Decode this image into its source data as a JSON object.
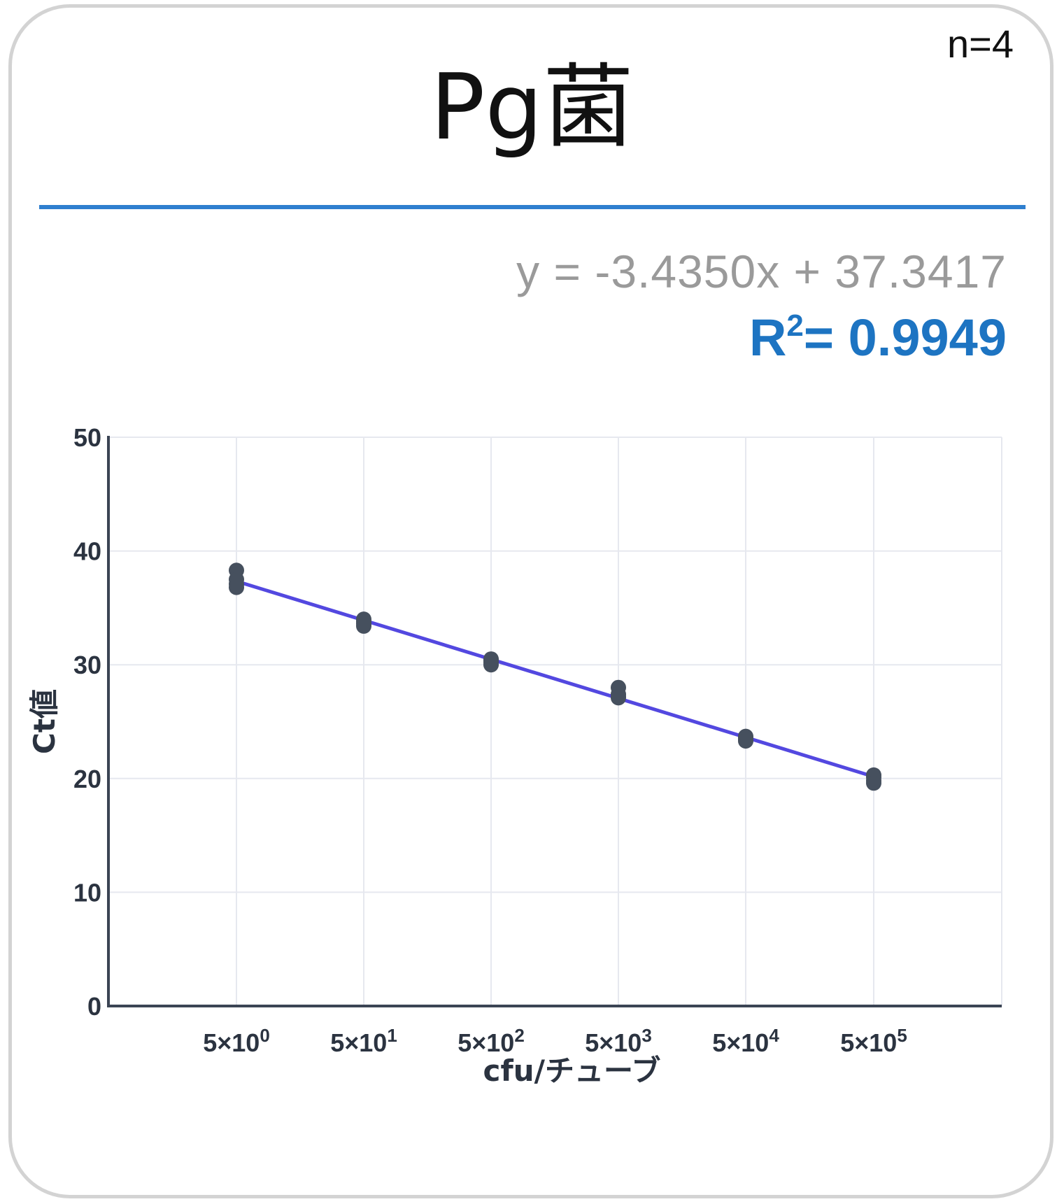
{
  "header": {
    "n_label": "n=4",
    "title": "Pg菌",
    "equation": "y = -3.4350x + 37.3417",
    "r2_prefix": "R",
    "r2_sup": "2",
    "r2_value": "= 0.9949"
  },
  "colors": {
    "rule": "#2f7fcf",
    "r2": "#1d74c2",
    "line": "#5348e0",
    "points": "#46505e",
    "grid": "#e6e8ef",
    "axis": "#3b4454"
  },
  "chart_data": {
    "type": "scatter",
    "xlabel": "cfu/チューブ",
    "ylabel": "Ct値",
    "ylim": [
      0,
      50
    ],
    "yticks": [
      0,
      10,
      20,
      30,
      40,
      50
    ],
    "categories": [
      {
        "base": "5×10",
        "exp": "0"
      },
      {
        "base": "5×10",
        "exp": "1"
      },
      {
        "base": "5×10",
        "exp": "2"
      },
      {
        "base": "5×10",
        "exp": "3"
      },
      {
        "base": "5×10",
        "exp": "4"
      },
      {
        "base": "5×10",
        "exp": "5"
      }
    ],
    "series": [
      {
        "values": [
          [
            38.3,
            37.5,
            37.1,
            36.8
          ],
          [
            34.0,
            33.8,
            33.6,
            33.4
          ],
          [
            30.5,
            30.4,
            30.2,
            30.0
          ],
          [
            28.0,
            27.4,
            27.2,
            27.1
          ],
          [
            23.7,
            23.6,
            23.4,
            23.3
          ],
          [
            20.3,
            20.1,
            19.8,
            19.6
          ]
        ]
      }
    ],
    "fit": {
      "slope": -3.435,
      "intercept": 37.3417
    },
    "grid": true
  }
}
